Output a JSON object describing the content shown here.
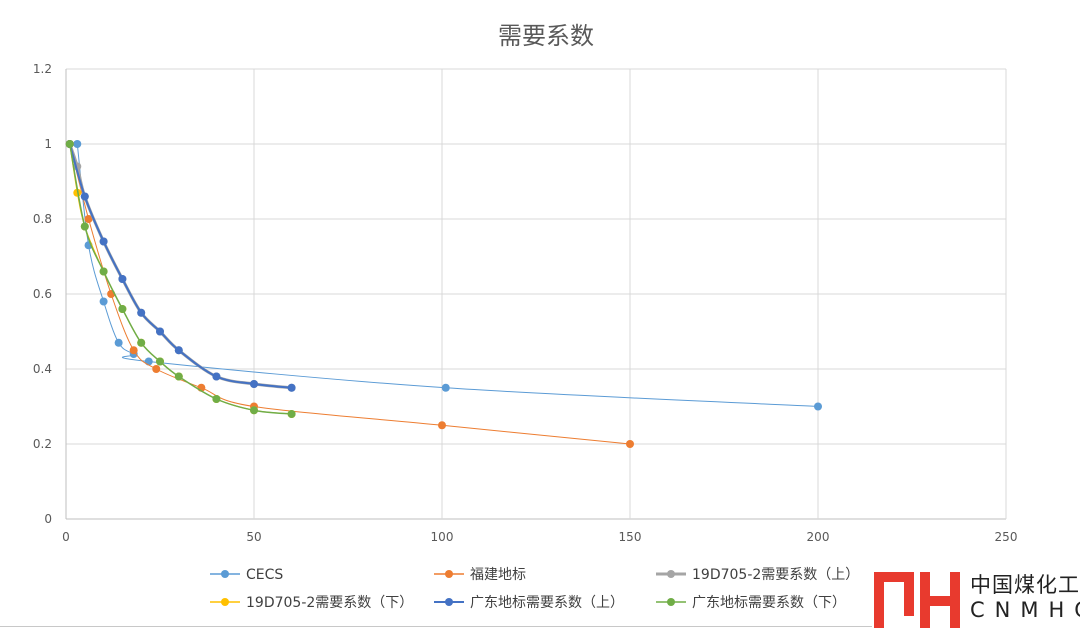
{
  "chart_data": {
    "type": "scatter",
    "title": "需要系数",
    "xlim": [
      0,
      250
    ],
    "ylim": [
      0,
      1.2
    ],
    "x_ticks": [
      "0",
      "50",
      "100",
      "150",
      "200",
      "250"
    ],
    "y_ticks": [
      "0",
      "0.2",
      "0.4",
      "0.6",
      "0.8",
      "1",
      "1.2"
    ],
    "grid": true,
    "legend_position": "bottom",
    "series": [
      {
        "name": "CECS",
        "color": "#5B9BD5",
        "width": 1,
        "points": [
          [
            3,
            1
          ],
          [
            6,
            0.73
          ],
          [
            10,
            0.58
          ],
          [
            14,
            0.47
          ],
          [
            18,
            0.44
          ],
          [
            22,
            0.42
          ],
          [
            101,
            0.35
          ],
          [
            200,
            0.3
          ]
        ]
      },
      {
        "name": "福建地标",
        "color": "#ED7D31",
        "width": 1,
        "points": [
          [
            1,
            1
          ],
          [
            6,
            0.8
          ],
          [
            12,
            0.6
          ],
          [
            18,
            0.45
          ],
          [
            24,
            0.4
          ],
          [
            36,
            0.35
          ],
          [
            50,
            0.3
          ],
          [
            100,
            0.25
          ],
          [
            150,
            0.2
          ]
        ]
      },
      {
        "name": "19D705-2需要系数（上）",
        "color": "#A5A5A5",
        "width": 3,
        "points": [
          [
            1,
            1
          ],
          [
            3,
            0.94
          ],
          [
            5,
            0.86
          ],
          [
            10,
            0.74
          ],
          [
            15,
            0.64
          ],
          [
            20,
            0.55
          ],
          [
            25,
            0.5
          ],
          [
            30,
            0.45
          ],
          [
            40,
            0.38
          ],
          [
            50,
            0.36
          ],
          [
            60,
            0.35
          ]
        ]
      },
      {
        "name": "19D705-2需要系数（下）",
        "color": "#FFC000",
        "width": 1,
        "points": [
          [
            1,
            1
          ],
          [
            3,
            0.87
          ],
          [
            5,
            0.78
          ],
          [
            10,
            0.66
          ],
          [
            15,
            0.56
          ],
          [
            20,
            0.47
          ],
          [
            25,
            0.42
          ],
          [
            30,
            0.38
          ],
          [
            40,
            0.32
          ],
          [
            50,
            0.29
          ],
          [
            60,
            0.28
          ]
        ]
      },
      {
        "name": "广东地标需要系数（上）",
        "color": "#4472C4",
        "width": 2,
        "points": [
          [
            1,
            1
          ],
          [
            5,
            0.86
          ],
          [
            10,
            0.74
          ],
          [
            15,
            0.64
          ],
          [
            20,
            0.55
          ],
          [
            25,
            0.5
          ],
          [
            30,
            0.45
          ],
          [
            40,
            0.38
          ],
          [
            50,
            0.36
          ],
          [
            60,
            0.35
          ]
        ]
      },
      {
        "name": "广东地标需要系数（下）",
        "color": "#70AD47",
        "width": 1.5,
        "points": [
          [
            1,
            1
          ],
          [
            5,
            0.78
          ],
          [
            10,
            0.66
          ],
          [
            15,
            0.56
          ],
          [
            20,
            0.47
          ],
          [
            25,
            0.42
          ],
          [
            30,
            0.38
          ],
          [
            40,
            0.32
          ],
          [
            50,
            0.29
          ],
          [
            60,
            0.28
          ]
        ]
      }
    ]
  },
  "logo": {
    "cn": "中国煤化工",
    "en": "CNMHG",
    "color": "#E83A2E"
  }
}
